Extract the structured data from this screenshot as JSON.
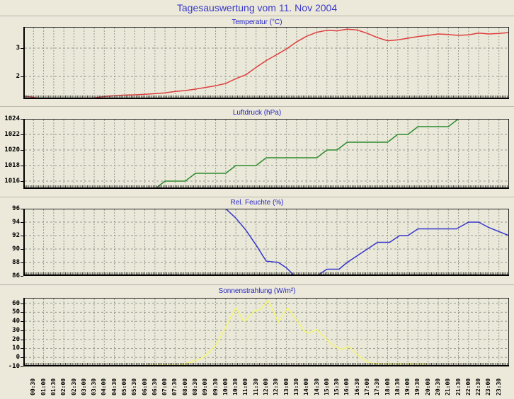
{
  "page": {
    "title": "Tagesauswertung vom 11. Nov 2004"
  },
  "x_axis": {
    "labels": [
      "00:30",
      "01:00",
      "01:30",
      "02:00",
      "02:30",
      "03:00",
      "03:30",
      "04:00",
      "04:30",
      "05:00",
      "05:30",
      "06:00",
      "06:30",
      "07:00",
      "07:30",
      "08:00",
      "08:30",
      "09:00",
      "09:30",
      "10:00",
      "10:30",
      "11:00",
      "11:30",
      "12:00",
      "12:30",
      "13:00",
      "13:30",
      "14:00",
      "14:30",
      "15:00",
      "15:30",
      "16:00",
      "16:30",
      "17:00",
      "17:30",
      "18:00",
      "18:30",
      "19:00",
      "19:30",
      "20:00",
      "20:30",
      "21:00",
      "21:30",
      "22:00",
      "22:30",
      "23:00",
      "23:30"
    ]
  },
  "colors": {
    "page_background": "#ECE9DA",
    "plot_background": "#E9E8D9",
    "grid": "#99998f",
    "border": "#000000",
    "title_blue": "#3a3ac8",
    "temperature_line": "#df3e3e",
    "pressure_line": "#2e8b2e",
    "humidity_line": "#3535cc",
    "radiation_line": "#f5f570"
  },
  "chart_data": [
    {
      "type": "line",
      "title": "Temperatur (°C)",
      "color": "#df3e3e",
      "ylim": [
        1.2,
        3.75
      ],
      "yticks": [
        3,
        2
      ],
      "grid_y": [
        3,
        2
      ],
      "grid": true,
      "series": [
        {
          "name": "Temperatur",
          "points": [
            [
              0,
              1.31
            ],
            [
              0.5,
              1.26
            ],
            [
              1,
              1.18
            ],
            [
              1.5,
              1.14
            ],
            [
              2,
              1.13
            ],
            [
              2.5,
              1.14
            ],
            [
              3,
              1.17
            ],
            [
              3.5,
              1.24
            ],
            [
              4,
              1.29
            ],
            [
              4.5,
              1.32
            ],
            [
              5,
              1.34
            ],
            [
              5.5,
              1.35
            ],
            [
              6,
              1.37
            ],
            [
              6.5,
              1.39
            ],
            [
              7,
              1.42
            ],
            [
              7.5,
              1.47
            ],
            [
              8,
              1.5
            ],
            [
              8.5,
              1.55
            ],
            [
              9,
              1.61
            ],
            [
              9.5,
              1.67
            ],
            [
              10,
              1.75
            ],
            [
              10.5,
              1.92
            ],
            [
              11,
              2.06
            ],
            [
              11.5,
              2.32
            ],
            [
              12,
              2.56
            ],
            [
              12.5,
              2.76
            ],
            [
              13,
              2.97
            ],
            [
              13.5,
              3.22
            ],
            [
              14,
              3.42
            ],
            [
              14.5,
              3.56
            ],
            [
              15,
              3.63
            ],
            [
              15.5,
              3.61
            ],
            [
              16,
              3.67
            ],
            [
              16.5,
              3.64
            ],
            [
              17,
              3.52
            ],
            [
              17.5,
              3.37
            ],
            [
              18,
              3.26
            ],
            [
              18.5,
              3.29
            ],
            [
              19,
              3.35
            ],
            [
              19.5,
              3.41
            ],
            [
              20,
              3.45
            ],
            [
              20.5,
              3.5
            ],
            [
              21,
              3.48
            ],
            [
              21.5,
              3.45
            ],
            [
              22,
              3.47
            ],
            [
              22.5,
              3.53
            ],
            [
              23,
              3.5
            ],
            [
              23.5,
              3.52
            ],
            [
              24,
              3.55
            ]
          ]
        }
      ]
    },
    {
      "type": "line",
      "title": "Luftdruck (hPa)",
      "color": "#2e8b2e",
      "ylim": [
        1015,
        1024
      ],
      "yticks": [
        1024,
        1022,
        1020,
        1018,
        1016
      ],
      "grid_y": [
        1022,
        1020,
        1018,
        1016
      ],
      "grid": true,
      "series": [
        {
          "name": "Luftdruck",
          "points": [
            [
              6.5,
              1015
            ],
            [
              7,
              1016
            ],
            [
              8,
              1016
            ],
            [
              8.5,
              1017
            ],
            [
              10,
              1017
            ],
            [
              10.5,
              1018
            ],
            [
              11.5,
              1018
            ],
            [
              12,
              1019
            ],
            [
              14.5,
              1019
            ],
            [
              15,
              1020
            ],
            [
              15.5,
              1020
            ],
            [
              16,
              1021
            ],
            [
              18,
              1021
            ],
            [
              18.5,
              1022
            ],
            [
              19,
              1022
            ],
            [
              19.5,
              1023
            ],
            [
              21,
              1023
            ],
            [
              21.5,
              1024
            ]
          ]
        }
      ]
    },
    {
      "type": "line",
      "title": "Rel. Feuchte (%)",
      "color": "#3535cc",
      "ylim": [
        86,
        96
      ],
      "yticks": [
        96,
        94,
        92,
        90,
        88,
        86
      ],
      "grid_y": [
        94,
        92,
        90,
        88
      ],
      "grid": true,
      "series": [
        {
          "name": "Rel. Feuchte",
          "points": [
            [
              0,
              96
            ],
            [
              10,
              96
            ],
            [
              10.5,
              94.6
            ],
            [
              11,
              92.8
            ],
            [
              11.5,
              90.6
            ],
            [
              12,
              88.2
            ],
            [
              12.6,
              88
            ],
            [
              13,
              87.2
            ],
            [
              13.4,
              86
            ],
            [
              14.5,
              86
            ],
            [
              15,
              87
            ],
            [
              15.6,
              87
            ],
            [
              16,
              88
            ],
            [
              16.5,
              89
            ],
            [
              17,
              90
            ],
            [
              17.5,
              91
            ],
            [
              18.1,
              91
            ],
            [
              18.6,
              92
            ],
            [
              19,
              92
            ],
            [
              19.5,
              93
            ],
            [
              21.4,
              93
            ],
            [
              22,
              94
            ],
            [
              22.5,
              94
            ],
            [
              23,
              93.2
            ],
            [
              23.5,
              92.6
            ],
            [
              24,
              92
            ]
          ]
        }
      ]
    },
    {
      "type": "line",
      "title": "Sonnenstrahlung (W/m²)",
      "color": "#f5f570",
      "ylim": [
        -10,
        66
      ],
      "yticks": [
        60,
        50,
        40,
        30,
        20,
        10,
        0,
        -10
      ],
      "grid_y": [
        60,
        50,
        40,
        30,
        20,
        10,
        0
      ],
      "grid": true,
      "series": [
        {
          "name": "Sonnenstrahlung",
          "points": [
            [
              6,
              -10
            ],
            [
              6.2,
              -8.6
            ],
            [
              7.8,
              -8.4
            ],
            [
              8.3,
              -5
            ],
            [
              8.9,
              0
            ],
            [
              9.5,
              13
            ],
            [
              10,
              33
            ],
            [
              10.5,
              55
            ],
            [
              10.9,
              40
            ],
            [
              11.4,
              51
            ],
            [
              11.7,
              53
            ],
            [
              12.1,
              63
            ],
            [
              12.6,
              39
            ],
            [
              13.05,
              55
            ],
            [
              13.9,
              29
            ],
            [
              14.1,
              27
            ],
            [
              14.5,
              31
            ],
            [
              15.3,
              13
            ],
            [
              15.75,
              9
            ],
            [
              16.1,
              12
            ],
            [
              16.5,
              3
            ],
            [
              16.8,
              -2
            ],
            [
              17.1,
              -6
            ],
            [
              17.5,
              -7
            ],
            [
              20,
              -7
            ]
          ]
        }
      ]
    }
  ]
}
